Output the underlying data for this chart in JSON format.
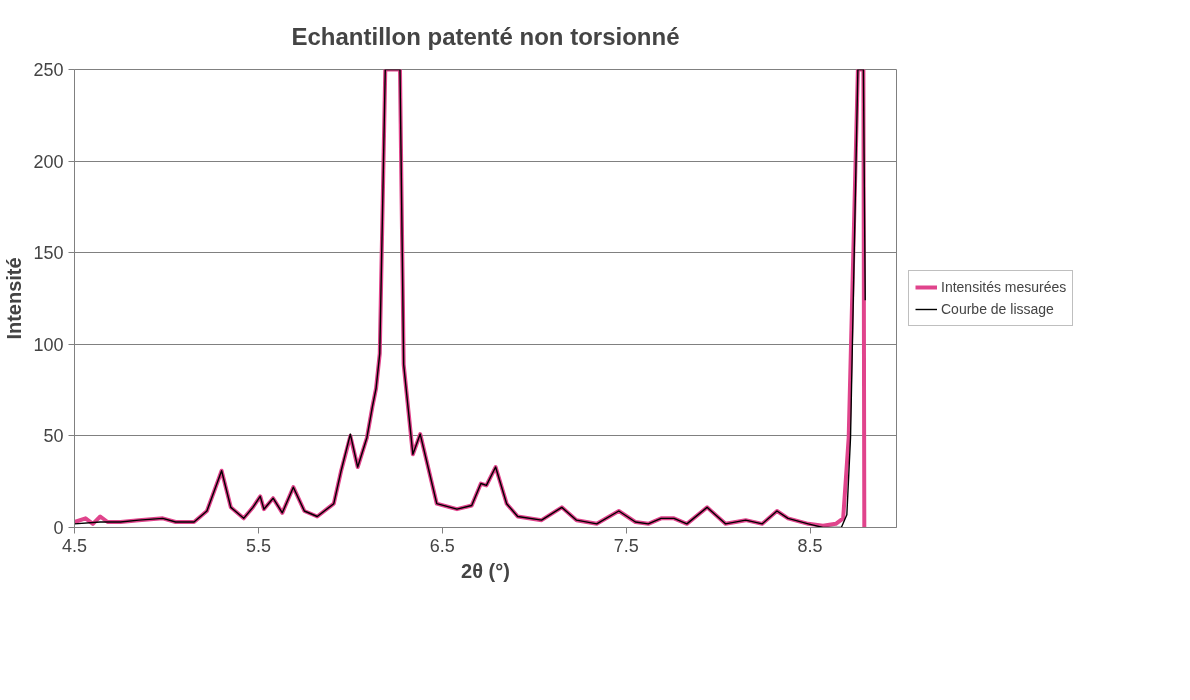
{
  "chart_data": {
    "type": "line",
    "title": "Echantillon patenté non torsionné",
    "xlabel": "2θ (°)",
    "ylabel": "Intensité",
    "xlim": [
      4.5,
      8.97
    ],
    "ylim": [
      0,
      250
    ],
    "xticks": [
      4.5,
      5.5,
      6.5,
      7.5,
      8.5
    ],
    "yticks": [
      0,
      50,
      100,
      150,
      200,
      250
    ],
    "grid": "y",
    "legend": "right",
    "series": [
      {
        "name": "Intensités mesurées",
        "color": "#e0448c",
        "x": [
          4.5,
          4.56,
          4.6,
          4.64,
          4.68,
          4.75,
          4.85,
          4.98,
          5.05,
          5.15,
          5.22,
          5.3,
          5.35,
          5.42,
          5.47,
          5.51,
          5.53,
          5.58,
          5.63,
          5.69,
          5.75,
          5.82,
          5.91,
          5.95,
          6.0,
          6.04,
          6.09,
          6.12,
          6.14,
          6.16,
          6.19,
          6.27,
          6.29,
          6.34,
          6.38,
          6.47,
          6.58,
          6.66,
          6.71,
          6.74,
          6.79,
          6.85,
          6.91,
          7.04,
          7.15,
          7.23,
          7.34,
          7.46,
          7.55,
          7.62,
          7.69,
          7.76,
          7.83,
          7.94,
          8.04,
          8.15,
          8.24,
          8.32,
          8.38,
          8.49,
          8.57,
          8.64,
          8.68,
          8.71,
          8.76,
          8.79,
          8.795
        ],
        "values": [
          3,
          5,
          2,
          6,
          3,
          3,
          4,
          5,
          3,
          3,
          9,
          31,
          11,
          5,
          11,
          17,
          10,
          16,
          8,
          22,
          9,
          6,
          13,
          31,
          50,
          33,
          49,
          66,
          76,
          95,
          250,
          250,
          89,
          40,
          51,
          13,
          10,
          12,
          24,
          23,
          33,
          13,
          6,
          4,
          11,
          4,
          2,
          9,
          3,
          2,
          5,
          5,
          2,
          11,
          2,
          4,
          2,
          9,
          5,
          2,
          1,
          2,
          5,
          49,
          250,
          250,
          0
        ]
      },
      {
        "name": "Courbe de lissage",
        "color": "#000000",
        "x": [
          4.5,
          4.64,
          4.75,
          4.85,
          4.98,
          5.05,
          5.15,
          5.22,
          5.3,
          5.35,
          5.42,
          5.47,
          5.51,
          5.53,
          5.58,
          5.63,
          5.69,
          5.75,
          5.82,
          5.91,
          5.95,
          6.0,
          6.04,
          6.09,
          6.12,
          6.14,
          6.16,
          6.19,
          6.27,
          6.29,
          6.34,
          6.38,
          6.47,
          6.58,
          6.66,
          6.71,
          6.74,
          6.79,
          6.85,
          6.91,
          7.04,
          7.15,
          7.23,
          7.34,
          7.46,
          7.55,
          7.62,
          7.69,
          7.76,
          7.83,
          7.94,
          8.04,
          8.15,
          8.24,
          8.32,
          8.38,
          8.49,
          8.57,
          8.67,
          8.7,
          8.72,
          8.76,
          8.79,
          8.8
        ],
        "values": [
          2,
          3,
          3,
          4,
          5,
          3,
          3,
          9,
          31,
          11,
          5,
          11,
          17,
          10,
          16,
          8,
          22,
          9,
          6,
          13,
          31,
          51,
          33,
          49,
          66,
          76,
          95,
          250,
          250,
          89,
          40,
          51,
          13,
          10,
          12,
          24,
          23,
          33,
          13,
          6,
          4,
          11,
          4,
          2,
          9,
          3,
          2,
          5,
          5,
          2,
          11,
          2,
          4,
          2,
          9,
          5,
          2,
          0,
          0,
          7,
          49,
          250,
          250,
          124
        ]
      }
    ]
  }
}
